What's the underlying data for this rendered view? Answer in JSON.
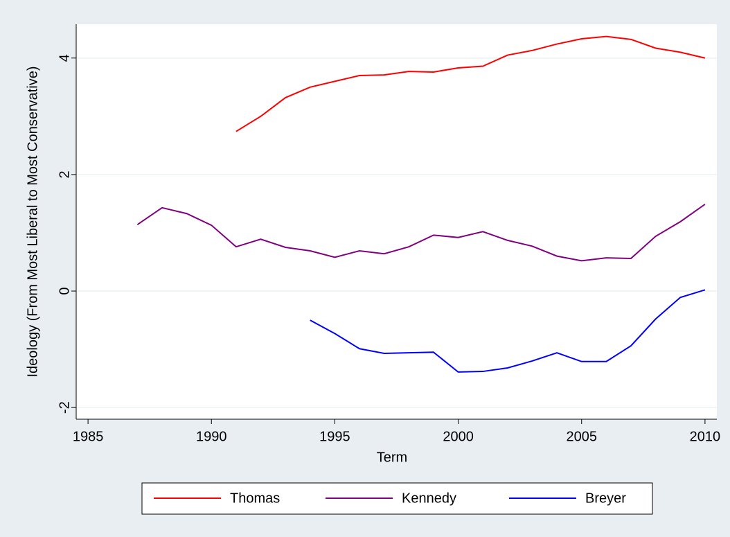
{
  "chart_data": {
    "type": "line",
    "x_label": "Term",
    "y_label": "Ideology (From Most Liberal to Most Conservative)",
    "x": [
      1987,
      1988,
      1989,
      1990,
      1991,
      1992,
      1993,
      1994,
      1995,
      1996,
      1997,
      1998,
      1999,
      2000,
      2001,
      2002,
      2003,
      2004,
      2005,
      2006,
      2007,
      2008,
      2009,
      2010
    ],
    "series": [
      {
        "name": "Thomas",
        "color": "#ff0000",
        "values": [
          null,
          null,
          null,
          null,
          2.74,
          3.0,
          3.32,
          3.5,
          3.6,
          3.7,
          3.71,
          3.77,
          3.76,
          3.83,
          3.86,
          4.05,
          4.13,
          4.24,
          4.33,
          4.37,
          4.32,
          4.17,
          4.1,
          4.0
        ]
      },
      {
        "name": "Kennedy",
        "color": "#800080",
        "values": [
          1.14,
          1.43,
          1.33,
          1.13,
          0.76,
          0.89,
          0.75,
          0.69,
          0.58,
          0.69,
          0.64,
          0.76,
          0.96,
          0.92,
          1.02,
          0.87,
          0.77,
          0.6,
          0.52,
          0.57,
          0.56,
          0.94,
          1.19,
          1.49
        ]
      },
      {
        "name": "Breyer",
        "color": "#0000ff",
        "values": [
          null,
          null,
          null,
          null,
          null,
          null,
          null,
          -0.5,
          -0.73,
          -0.99,
          -1.07,
          -1.06,
          -1.05,
          -1.39,
          -1.38,
          -1.32,
          -1.2,
          -1.06,
          -1.21,
          -1.21,
          -0.94,
          -0.48,
          -0.11,
          0.02
        ]
      }
    ],
    "xlim": [
      1984.52,
      2010.48
    ],
    "xticks": [
      1985,
      1990,
      1995,
      2000,
      2005,
      2010
    ],
    "ylim": [
      -2.2,
      4.58
    ],
    "yticks": [
      -2,
      0,
      2,
      4
    ],
    "grid": true,
    "legend": "bottom"
  }
}
